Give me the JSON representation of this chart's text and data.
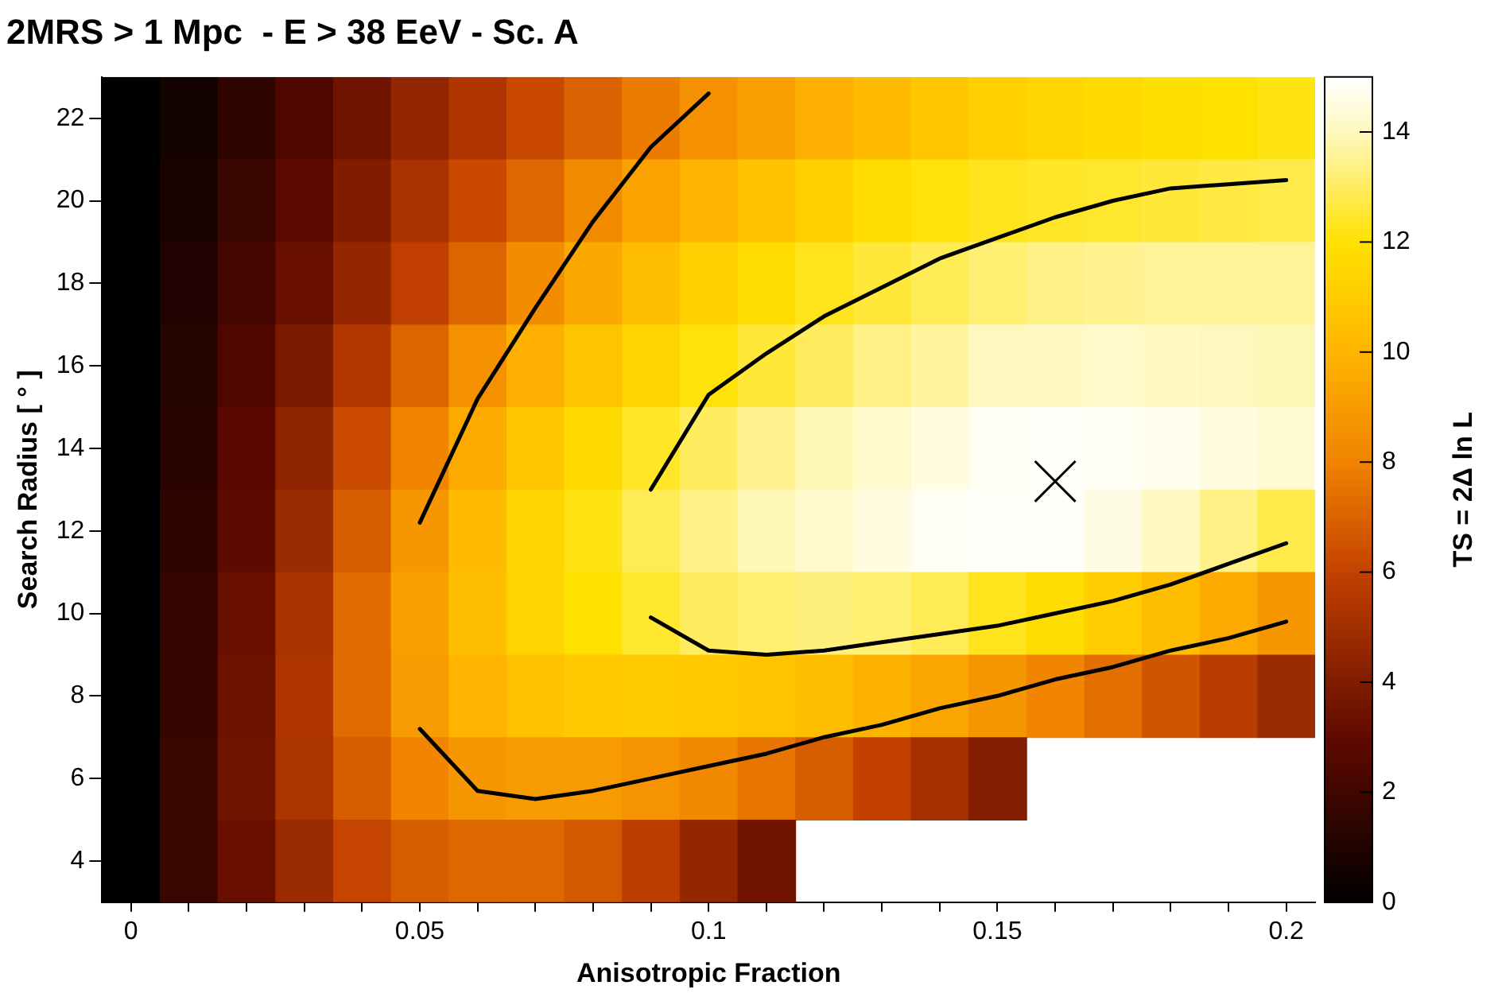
{
  "chart_data": {
    "type": "heatmap",
    "title": "2MRS > 1 Mpc  - E > 38 EeV - Sc. A",
    "xlabel": "Anisotropic Fraction",
    "ylabel": "Search Radius [ ° ]",
    "clabel": "TS = 2Δ ln L",
    "ylim": [
      3,
      23
    ],
    "yticks": [
      4,
      6,
      8,
      10,
      12,
      14,
      16,
      18,
      20,
      22
    ],
    "clim": [
      0,
      15
    ],
    "cticks": [
      0,
      2,
      4,
      6,
      8,
      10,
      12,
      14
    ],
    "grid": false,
    "legend": false,
    "categories": [
      "0",
      null,
      null,
      null,
      null,
      "0.05",
      null,
      null,
      null,
      null,
      "0.1",
      null,
      null,
      null,
      null,
      "0.15",
      null,
      null,
      null,
      null,
      "0.2"
    ],
    "cells": [
      [
        0,
        0.6,
        1.5,
        2.5,
        3.5,
        4.5,
        5.4,
        6.2,
        7,
        7.8,
        8.6,
        9.2,
        9.8,
        10.3,
        10.8,
        11.2,
        11.5,
        11.7,
        11.9,
        12,
        12.2
      ],
      [
        0,
        0.8,
        1.8,
        2.9,
        4,
        5.2,
        6.2,
        7.2,
        8.3,
        9.3,
        10,
        10.6,
        11.2,
        11.8,
        12.1,
        12.3,
        12.4,
        12.5,
        12.6,
        12.7,
        12.8
      ],
      [
        0,
        1,
        2.1,
        3.3,
        4.6,
        5.9,
        7.1,
        8.4,
        9.5,
        10.4,
        11.2,
        11.8,
        12.3,
        12.6,
        12.9,
        13.2,
        13.4,
        13.5,
        13.6,
        13.6,
        13.6
      ],
      [
        0,
        1.2,
        2.5,
        3.9,
        5.5,
        7.1,
        8.6,
        9.8,
        10.7,
        11.4,
        12.1,
        12.6,
        13,
        13.4,
        13.7,
        14,
        14.1,
        14.2,
        14.1,
        14,
        13.9
      ],
      [
        0,
        1.3,
        2.8,
        4.4,
        6.3,
        8.1,
        9.6,
        10.8,
        11.7,
        12.4,
        13,
        13.5,
        13.9,
        14.2,
        14.5,
        14.8,
        14.9,
        14.8,
        14.7,
        14.5,
        14.3
      ],
      [
        0,
        1.5,
        3,
        4.8,
        6.9,
        8.8,
        10.3,
        11.4,
        12.2,
        12.9,
        13.4,
        13.9,
        14.2,
        14.5,
        14.8,
        14.9,
        14.9,
        14.6,
        14.1,
        13.4,
        12.8
      ],
      [
        0,
        1.6,
        3.3,
        5.2,
        7.3,
        9.2,
        10.5,
        11.4,
        12,
        12.5,
        13,
        13.2,
        13.3,
        13.2,
        12.9,
        12.3,
        11.8,
        11.1,
        10.4,
        9.6,
        8.8
      ],
      [
        0,
        1.7,
        3.4,
        5.4,
        7.3,
        9,
        10,
        10.6,
        10.9,
        11,
        10.9,
        10.7,
        10.4,
        9.9,
        9.4,
        8.8,
        8.1,
        7.4,
        6.6,
        5.7,
        4.8
      ],
      [
        0,
        1.8,
        3.5,
        5.3,
        6.9,
        8.1,
        8.8,
        9,
        9,
        8.7,
        8.2,
        7.6,
        6.9,
        6,
        5.1,
        4.1,
        null,
        null,
        null,
        null,
        null
      ],
      [
        0,
        1.8,
        3.3,
        4.8,
        6.1,
        6.9,
        7.2,
        7.2,
        6.7,
        5.8,
        4.6,
        3.5,
        null,
        null,
        null,
        null,
        null,
        null,
        null,
        null,
        null
      ]
    ],
    "series": [
      {
        "type": "line",
        "color": "#000000",
        "values": [
          null,
          null,
          null,
          null,
          null,
          12.2,
          15.2,
          17.4,
          19.5,
          21.3,
          22.6,
          null,
          null,
          null,
          null,
          null,
          null,
          null,
          null,
          null,
          null
        ]
      },
      {
        "type": "line",
        "color": "#000000",
        "values": [
          null,
          null,
          null,
          null,
          null,
          7.2,
          5.7,
          5.5,
          5.7,
          6,
          6.3,
          6.6,
          7,
          7.3,
          7.7,
          8,
          8.4,
          8.7,
          9.1,
          9.4,
          9.8
        ]
      },
      {
        "type": "line",
        "color": "#000000",
        "values": [
          null,
          null,
          null,
          null,
          null,
          null,
          null,
          null,
          null,
          13,
          15.3,
          16.3,
          17.2,
          17.9,
          18.6,
          19.1,
          19.6,
          20,
          20.3,
          20.4,
          20.5
        ]
      },
      {
        "type": "line",
        "color": "#000000",
        "values": [
          null,
          null,
          null,
          null,
          null,
          null,
          null,
          null,
          null,
          9.9,
          9.1,
          9,
          9.1,
          9.3,
          9.5,
          9.7,
          10,
          10.3,
          10.7,
          11.2,
          11.7
        ]
      },
      {
        "type": "scatter",
        "color": "#000000",
        "marker": "cross",
        "values": [
          null,
          null,
          null,
          null,
          null,
          null,
          null,
          null,
          null,
          null,
          null,
          null,
          null,
          null,
          null,
          null,
          13.2,
          null,
          null,
          null,
          null
        ]
      }
    ]
  }
}
